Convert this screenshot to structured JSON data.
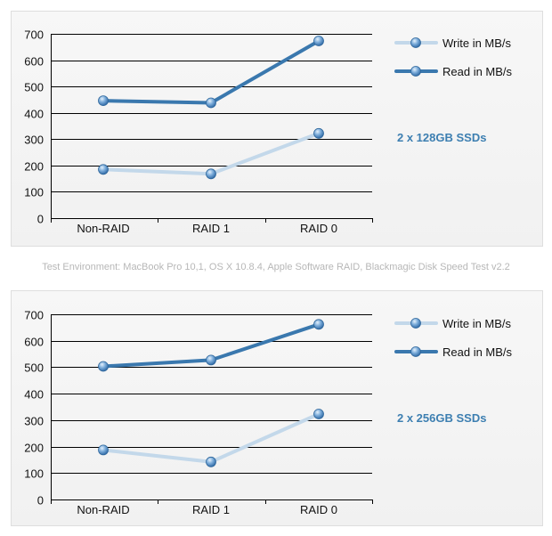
{
  "environment_note": "Test Environment: MacBook Pro 10,1, OS X 10.8.4, Apple Software RAID, Blackmagic Disk Speed Test v2.2",
  "colors": {
    "write": "#c3d8ea",
    "read": "#3a78ae",
    "annotation": "#3d7fb1",
    "grid": "#000000"
  },
  "chart_data": [
    {
      "type": "line",
      "categories": [
        "Non-RAID",
        "RAID 1",
        "RAID 0"
      ],
      "ylim": [
        0,
        700
      ],
      "yticks": [
        0,
        100,
        200,
        300,
        400,
        500,
        600,
        700
      ],
      "grid": true,
      "legend_position": "top-right",
      "annotation": "2 x 128GB SSDs",
      "series": [
        {
          "name": "Write in MB/s",
          "values": [
            185,
            168,
            322
          ]
        },
        {
          "name": "Read in MB/s",
          "values": [
            446,
            438,
            673
          ]
        }
      ]
    },
    {
      "type": "line",
      "categories": [
        "Non-RAID",
        "RAID 1",
        "RAID 0"
      ],
      "ylim": [
        0,
        700
      ],
      "yticks": [
        0,
        100,
        200,
        300,
        400,
        500,
        600,
        700
      ],
      "grid": true,
      "legend_position": "top-right",
      "annotation": "2 x 256GB SSDs",
      "series": [
        {
          "name": "Write in MB/s",
          "values": [
            187,
            142,
            323
          ]
        },
        {
          "name": "Read in MB/s",
          "values": [
            503,
            527,
            662
          ]
        }
      ]
    }
  ]
}
